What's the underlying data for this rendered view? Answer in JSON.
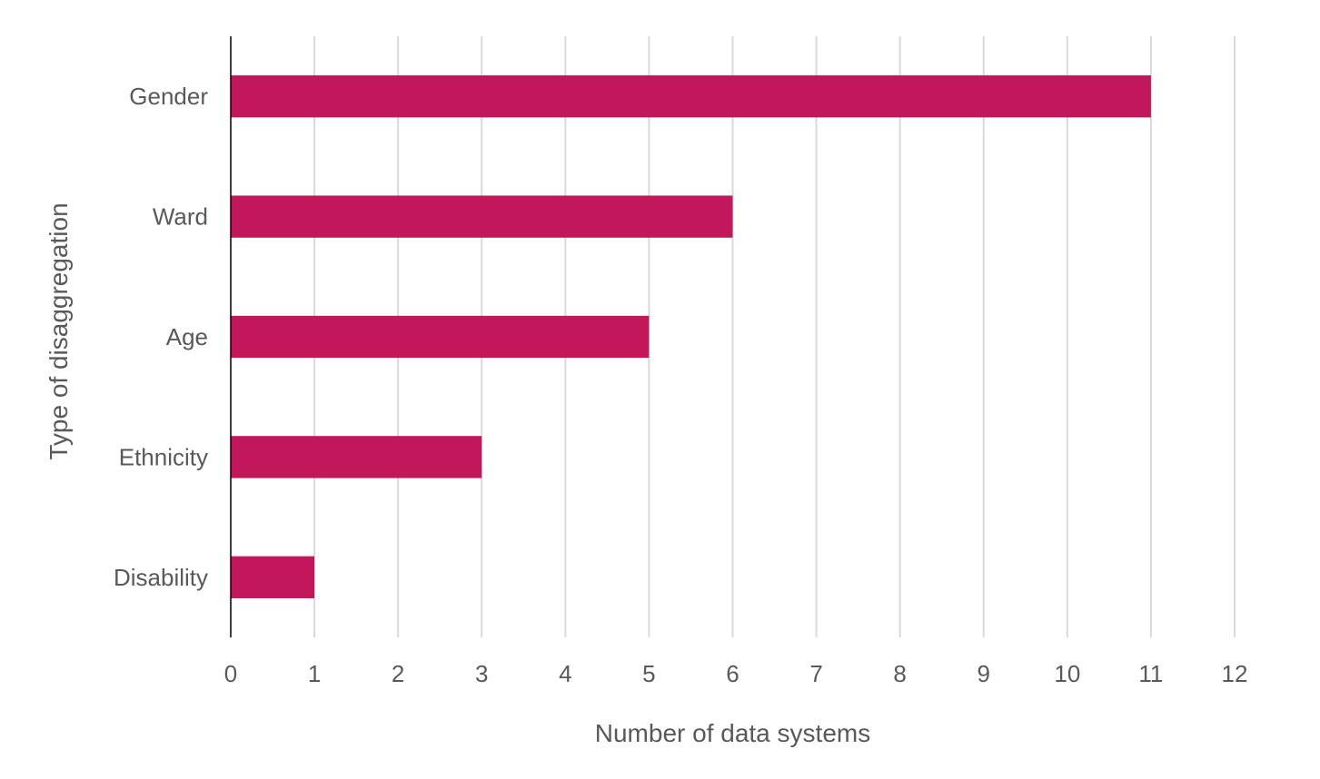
{
  "chart_data": {
    "type": "bar",
    "orientation": "horizontal",
    "categories": [
      "Gender",
      "Ward",
      "Age",
      "Ethnicity",
      "Disability"
    ],
    "values": [
      11,
      6,
      5,
      3,
      1
    ],
    "xlabel": "Number of data systems",
    "ylabel": "Type of disaggregation",
    "xlim": [
      0,
      12
    ],
    "xticks": [
      0,
      1,
      2,
      3,
      4,
      5,
      6,
      7,
      8,
      9,
      10,
      11,
      12
    ],
    "grid": "vertical",
    "legend": "none",
    "bar_color": "#C2185B"
  }
}
